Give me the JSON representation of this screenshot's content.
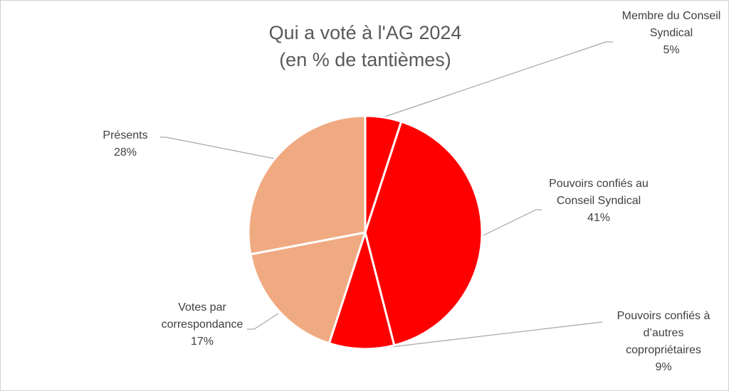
{
  "chart_data": {
    "type": "pie",
    "title": [
      "Qui a voté à l'AG 2024",
      "(en % de tantièmes)"
    ],
    "categories": [
      "Membre du Conseil Syndical",
      "Pouvoirs confiés au Conseil Syndical",
      "Pouvoirs confiés à d’autres copropriétaires",
      "Votes par correspondance",
      "Présents"
    ],
    "values": [
      5,
      41,
      9,
      17,
      28
    ],
    "value_labels": [
      "5%",
      "41%",
      "9%",
      "17%",
      "28%"
    ],
    "colors": [
      "#ff0000",
      "#ff0000",
      "#ff0000",
      "#f0aa82",
      "#f0aa82"
    ]
  }
}
